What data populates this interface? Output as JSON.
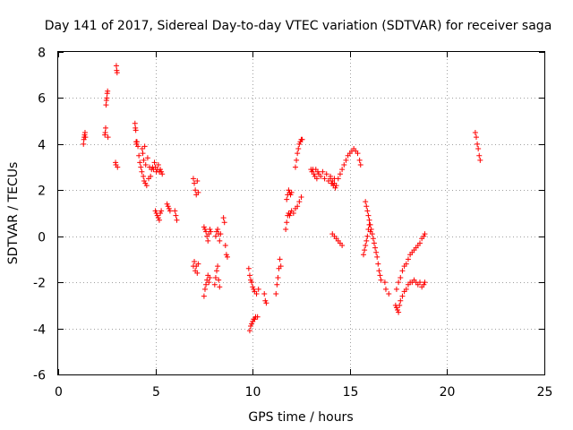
{
  "chart_data": {
    "type": "scatter",
    "title": "Day 141 of 2017, Sidereal Day-to-day VTEC variation (SDTVAR) for receiver saga",
    "xlabel": "GPS time / hours",
    "ylabel": "SDTVAR / TECUs",
    "xlim": [
      0,
      25
    ],
    "ylim": [
      -6,
      8
    ],
    "xticks": [
      0,
      5,
      10,
      15,
      20,
      25
    ],
    "yticks": [
      -6,
      -4,
      -2,
      0,
      2,
      4,
      6,
      8
    ],
    "grid": true,
    "marker": "+",
    "color": "#ff0000",
    "series": [
      {
        "name": "saga",
        "points": [
          [
            1.3,
            4.0
          ],
          [
            1.32,
            4.2
          ],
          [
            1.34,
            4.3
          ],
          [
            1.36,
            4.4
          ],
          [
            1.38,
            4.5
          ],
          [
            1.4,
            4.3
          ],
          [
            2.4,
            4.4
          ],
          [
            2.42,
            4.5
          ],
          [
            2.44,
            4.7
          ],
          [
            2.46,
            5.7
          ],
          [
            2.48,
            5.9
          ],
          [
            2.5,
            6.0
          ],
          [
            2.52,
            6.2
          ],
          [
            2.54,
            6.3
          ],
          [
            2.56,
            4.3
          ],
          [
            2.95,
            3.2
          ],
          [
            2.97,
            3.1
          ],
          [
            2.99,
            7.4
          ],
          [
            3.01,
            7.2
          ],
          [
            3.03,
            7.1
          ],
          [
            3.05,
            3.0
          ],
          [
            3.95,
            4.9
          ],
          [
            3.97,
            4.7
          ],
          [
            3.99,
            4.6
          ],
          [
            4.01,
            4.1
          ],
          [
            4.03,
            4.0
          ],
          [
            4.05,
            4.1
          ],
          [
            4.1,
            3.9
          ],
          [
            4.15,
            3.5
          ],
          [
            4.2,
            3.2
          ],
          [
            4.25,
            3.0
          ],
          [
            4.3,
            2.8
          ],
          [
            4.32,
            3.8
          ],
          [
            4.35,
            3.6
          ],
          [
            4.38,
            2.6
          ],
          [
            4.4,
            3.3
          ],
          [
            4.42,
            2.4
          ],
          [
            4.45,
            3.9
          ],
          [
            4.48,
            2.3
          ],
          [
            4.5,
            3.1
          ],
          [
            4.55,
            2.2
          ],
          [
            4.6,
            3.4
          ],
          [
            4.65,
            2.5
          ],
          [
            4.7,
            3.0
          ],
          [
            4.75,
            2.6
          ],
          [
            4.8,
            2.9
          ],
          [
            4.85,
            3.0
          ],
          [
            4.9,
            2.9
          ],
          [
            4.95,
            3.2
          ],
          [
            5.0,
            3.0
          ],
          [
            5.05,
            2.8
          ],
          [
            5.1,
            2.9
          ],
          [
            5.15,
            3.1
          ],
          [
            5.2,
            2.8
          ],
          [
            5.25,
            2.9
          ],
          [
            5.3,
            2.8
          ],
          [
            5.35,
            2.7
          ],
          [
            5.0,
            1.1
          ],
          [
            5.05,
            1.0
          ],
          [
            5.1,
            0.9
          ],
          [
            5.15,
            0.8
          ],
          [
            5.2,
            0.7
          ],
          [
            5.25,
            1.0
          ],
          [
            5.3,
            1.1
          ],
          [
            5.6,
            1.4
          ],
          [
            5.65,
            1.3
          ],
          [
            5.7,
            1.2
          ],
          [
            5.75,
            1.1
          ],
          [
            6.0,
            1.1
          ],
          [
            6.05,
            0.9
          ],
          [
            6.1,
            0.7
          ],
          [
            6.95,
            2.5
          ],
          [
            7.0,
            2.3
          ],
          [
            7.05,
            2.0
          ],
          [
            7.1,
            1.8
          ],
          [
            7.15,
            2.4
          ],
          [
            7.2,
            1.9
          ],
          [
            6.95,
            -1.3
          ],
          [
            7.0,
            -1.1
          ],
          [
            7.05,
            -1.5
          ],
          [
            7.1,
            -1.3
          ],
          [
            7.15,
            -1.6
          ],
          [
            7.2,
            -1.2
          ],
          [
            7.5,
            -2.6
          ],
          [
            7.55,
            -2.3
          ],
          [
            7.6,
            -2.1
          ],
          [
            7.65,
            -1.9
          ],
          [
            7.7,
            -1.7
          ],
          [
            7.75,
            -2.0
          ],
          [
            7.8,
            -1.8
          ],
          [
            7.5,
            0.4
          ],
          [
            7.55,
            0.3
          ],
          [
            7.6,
            0.2
          ],
          [
            7.65,
            0.0
          ],
          [
            7.7,
            -0.2
          ],
          [
            7.75,
            0.1
          ],
          [
            7.8,
            0.3
          ],
          [
            7.85,
            0.2
          ],
          [
            8.05,
            -2.1
          ],
          [
            8.1,
            -1.8
          ],
          [
            8.15,
            -1.5
          ],
          [
            8.2,
            -1.3
          ],
          [
            8.25,
            -1.9
          ],
          [
            8.3,
            -2.2
          ],
          [
            8.1,
            0.0
          ],
          [
            8.15,
            0.2
          ],
          [
            8.2,
            0.3
          ],
          [
            8.25,
            0.1
          ],
          [
            8.3,
            -0.2
          ],
          [
            8.35,
            0.1
          ],
          [
            8.5,
            0.8
          ],
          [
            8.55,
            0.6
          ],
          [
            8.6,
            -0.4
          ],
          [
            8.65,
            -0.8
          ],
          [
            8.7,
            -0.9
          ],
          [
            9.8,
            -1.4
          ],
          [
            9.85,
            -1.7
          ],
          [
            9.9,
            -1.9
          ],
          [
            9.95,
            -2.0
          ],
          [
            10.0,
            -2.2
          ],
          [
            10.05,
            -2.3
          ],
          [
            10.1,
            -2.4
          ],
          [
            10.2,
            -2.5
          ],
          [
            10.3,
            -2.3
          ],
          [
            9.85,
            -4.1
          ],
          [
            9.9,
            -3.9
          ],
          [
            9.95,
            -3.8
          ],
          [
            10.0,
            -3.7
          ],
          [
            10.05,
            -3.6
          ],
          [
            10.1,
            -3.6
          ],
          [
            10.15,
            -3.5
          ],
          [
            10.25,
            -3.5
          ],
          [
            10.6,
            -2.5
          ],
          [
            10.65,
            -2.8
          ],
          [
            10.7,
            -2.9
          ],
          [
            11.2,
            -2.5
          ],
          [
            11.25,
            -2.1
          ],
          [
            11.3,
            -1.8
          ],
          [
            11.35,
            -1.4
          ],
          [
            11.4,
            -1.0
          ],
          [
            11.45,
            -1.3
          ],
          [
            11.7,
            0.3
          ],
          [
            11.75,
            0.6
          ],
          [
            11.8,
            0.9
          ],
          [
            11.85,
            1.0
          ],
          [
            11.9,
            0.9
          ],
          [
            11.95,
            1.0
          ],
          [
            12.0,
            1.1
          ],
          [
            12.1,
            1.0
          ],
          [
            12.2,
            1.2
          ],
          [
            12.3,
            1.3
          ],
          [
            12.4,
            1.5
          ],
          [
            12.5,
            1.7
          ],
          [
            11.75,
            1.6
          ],
          [
            11.8,
            1.8
          ],
          [
            11.85,
            2.0
          ],
          [
            11.9,
            1.9
          ],
          [
            11.95,
            1.8
          ],
          [
            12.0,
            1.9
          ],
          [
            12.2,
            3.0
          ],
          [
            12.25,
            3.3
          ],
          [
            12.3,
            3.6
          ],
          [
            12.35,
            3.8
          ],
          [
            12.4,
            4.0
          ],
          [
            12.45,
            4.1
          ],
          [
            12.5,
            4.2
          ],
          [
            12.55,
            4.2
          ],
          [
            13.0,
            2.9
          ],
          [
            13.05,
            2.8
          ],
          [
            13.1,
            2.9
          ],
          [
            13.15,
            2.7
          ],
          [
            13.2,
            2.6
          ],
          [
            13.25,
            2.9
          ],
          [
            13.3,
            2.5
          ],
          [
            13.35,
            2.8
          ],
          [
            13.4,
            2.7
          ],
          [
            13.5,
            2.6
          ],
          [
            13.6,
            2.8
          ],
          [
            13.7,
            2.5
          ],
          [
            13.8,
            2.7
          ],
          [
            13.9,
            2.4
          ],
          [
            14.0,
            2.6
          ],
          [
            14.1,
            2.3
          ],
          [
            14.2,
            2.5
          ],
          [
            14.3,
            2.2
          ],
          [
            14.4,
            2.5
          ],
          [
            14.5,
            2.7
          ],
          [
            14.6,
            2.9
          ],
          [
            14.7,
            3.1
          ],
          [
            14.8,
            3.3
          ],
          [
            14.9,
            3.5
          ],
          [
            15.0,
            3.6
          ],
          [
            15.1,
            3.7
          ],
          [
            15.2,
            3.8
          ],
          [
            15.3,
            3.7
          ],
          [
            15.4,
            3.6
          ],
          [
            15.5,
            3.3
          ],
          [
            15.55,
            3.1
          ],
          [
            14.0,
            2.5
          ],
          [
            14.05,
            2.3
          ],
          [
            14.1,
            2.4
          ],
          [
            14.15,
            2.2
          ],
          [
            14.2,
            2.3
          ],
          [
            14.25,
            2.1
          ],
          [
            14.1,
            0.1
          ],
          [
            14.2,
            0.0
          ],
          [
            14.3,
            -0.1
          ],
          [
            14.4,
            -0.2
          ],
          [
            14.5,
            -0.3
          ],
          [
            14.6,
            -0.4
          ],
          [
            15.7,
            -0.8
          ],
          [
            15.75,
            -0.6
          ],
          [
            15.8,
            -0.4
          ],
          [
            15.85,
            -0.2
          ],
          [
            15.9,
            0.0
          ],
          [
            15.95,
            0.3
          ],
          [
            16.0,
            0.5
          ],
          [
            16.05,
            0.2
          ],
          [
            15.8,
            1.5
          ],
          [
            15.85,
            1.3
          ],
          [
            15.9,
            1.1
          ],
          [
            15.95,
            0.9
          ],
          [
            16.0,
            0.7
          ],
          [
            16.05,
            0.5
          ],
          [
            16.1,
            0.3
          ],
          [
            16.15,
            0.1
          ],
          [
            16.2,
            -0.1
          ],
          [
            16.25,
            -0.3
          ],
          [
            16.3,
            -0.5
          ],
          [
            16.35,
            -0.7
          ],
          [
            16.4,
            -0.9
          ],
          [
            16.45,
            -1.2
          ],
          [
            16.5,
            -1.5
          ],
          [
            16.55,
            -1.7
          ],
          [
            16.6,
            -1.9
          ],
          [
            16.8,
            -2.0
          ],
          [
            16.85,
            -2.3
          ],
          [
            17.0,
            -2.5
          ],
          [
            17.35,
            -3.0
          ],
          [
            17.4,
            -3.1
          ],
          [
            17.45,
            -3.2
          ],
          [
            17.5,
            -3.3
          ],
          [
            17.55,
            -3.0
          ],
          [
            17.6,
            -2.8
          ],
          [
            17.4,
            -2.3
          ],
          [
            17.5,
            -2.0
          ],
          [
            17.6,
            -1.8
          ],
          [
            17.7,
            -1.5
          ],
          [
            17.8,
            -1.3
          ],
          [
            17.9,
            -1.2
          ],
          [
            18.0,
            -1.0
          ],
          [
            18.1,
            -0.8
          ],
          [
            18.2,
            -0.7
          ],
          [
            18.3,
            -0.6
          ],
          [
            18.4,
            -0.5
          ],
          [
            18.5,
            -0.4
          ],
          [
            18.6,
            -0.3
          ],
          [
            18.7,
            -0.1
          ],
          [
            18.8,
            0.0
          ],
          [
            18.85,
            0.1
          ],
          [
            17.7,
            -2.6
          ],
          [
            17.8,
            -2.4
          ],
          [
            17.9,
            -2.3
          ],
          [
            18.0,
            -2.1
          ],
          [
            18.1,
            -2.0
          ],
          [
            18.2,
            -2.0
          ],
          [
            18.3,
            -1.9
          ],
          [
            18.4,
            -2.0
          ],
          [
            18.5,
            -2.1
          ],
          [
            18.6,
            -2.0
          ],
          [
            18.7,
            -2.2
          ],
          [
            18.8,
            -2.1
          ],
          [
            18.85,
            -2.0
          ],
          [
            21.45,
            4.5
          ],
          [
            21.5,
            4.3
          ],
          [
            21.55,
            4.0
          ],
          [
            21.6,
            3.8
          ],
          [
            21.65,
            3.5
          ],
          [
            21.7,
            3.3
          ]
        ]
      }
    ]
  }
}
